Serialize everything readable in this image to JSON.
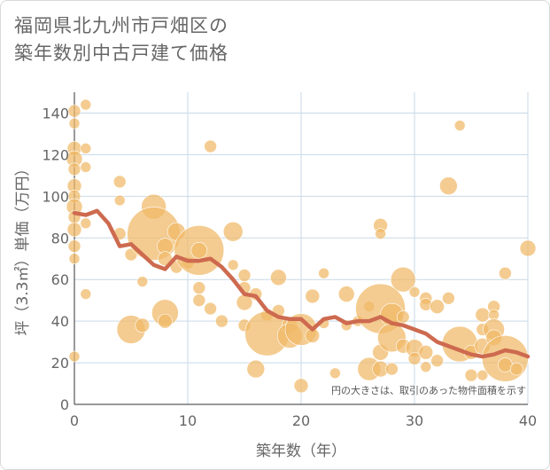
{
  "title_lines": [
    "福岡県北九州市戸畑区の",
    "築年数別中古戸建て価格"
  ],
  "chart_data": {
    "type": "scatter",
    "xlabel": "築年数（年）",
    "ylabel": "坪（3.3㎡）単価（万円）",
    "xlim": [
      0,
      40
    ],
    "ylim": [
      0,
      150
    ],
    "xticks": [
      0,
      10,
      20,
      30,
      40
    ],
    "yticks": [
      0,
      20,
      40,
      60,
      80,
      100,
      120,
      140
    ],
    "grid": true,
    "note": "円の大きさは、取引のあった物件面積を示す",
    "bubble_color": "#f0b866",
    "line_color": "#cd6a4f",
    "bubbles": [
      {
        "x": 0,
        "y": 141,
        "r": 7
      },
      {
        "x": 0,
        "y": 135,
        "r": 6
      },
      {
        "x": 0,
        "y": 123,
        "r": 8
      },
      {
        "x": 0,
        "y": 118,
        "r": 9
      },
      {
        "x": 0,
        "y": 113,
        "r": 7
      },
      {
        "x": 0,
        "y": 105,
        "r": 8
      },
      {
        "x": 0,
        "y": 100,
        "r": 7
      },
      {
        "x": 0,
        "y": 95,
        "r": 9
      },
      {
        "x": 0,
        "y": 90,
        "r": 7
      },
      {
        "x": 0,
        "y": 84,
        "r": 8
      },
      {
        "x": 0,
        "y": 76,
        "r": 7
      },
      {
        "x": 0,
        "y": 70,
        "r": 6
      },
      {
        "x": 0,
        "y": 23,
        "r": 6
      },
      {
        "x": 1,
        "y": 144,
        "r": 6
      },
      {
        "x": 1,
        "y": 123,
        "r": 6
      },
      {
        "x": 1,
        "y": 114,
        "r": 6
      },
      {
        "x": 1,
        "y": 87,
        "r": 6
      },
      {
        "x": 1,
        "y": 53,
        "r": 6
      },
      {
        "x": 4,
        "y": 107,
        "r": 7
      },
      {
        "x": 4,
        "y": 98,
        "r": 6
      },
      {
        "x": 4,
        "y": 82,
        "r": 7
      },
      {
        "x": 5,
        "y": 72,
        "r": 7
      },
      {
        "x": 5,
        "y": 36,
        "r": 16
      },
      {
        "x": 6,
        "y": 59,
        "r": 6
      },
      {
        "x": 6,
        "y": 38,
        "r": 8
      },
      {
        "x": 7,
        "y": 95,
        "r": 14
      },
      {
        "x": 7,
        "y": 82,
        "r": 30
      },
      {
        "x": 8,
        "y": 76,
        "r": 9
      },
      {
        "x": 8,
        "y": 70,
        "r": 8
      },
      {
        "x": 8,
        "y": 44,
        "r": 15
      },
      {
        "x": 8,
        "y": 40,
        "r": 8
      },
      {
        "x": 9,
        "y": 83,
        "r": 10
      },
      {
        "x": 9,
        "y": 66,
        "r": 7
      },
      {
        "x": 10,
        "y": 68,
        "r": 7
      },
      {
        "x": 11,
        "y": 74,
        "r": 28
      },
      {
        "x": 11,
        "y": 74,
        "r": 9
      },
      {
        "x": 11,
        "y": 56,
        "r": 7
      },
      {
        "x": 11,
        "y": 50,
        "r": 7
      },
      {
        "x": 12,
        "y": 124,
        "r": 7
      },
      {
        "x": 12,
        "y": 46,
        "r": 7
      },
      {
        "x": 13,
        "y": 40,
        "r": 7
      },
      {
        "x": 14,
        "y": 83,
        "r": 11
      },
      {
        "x": 14,
        "y": 67,
        "r": 6
      },
      {
        "x": 15,
        "y": 62,
        "r": 7
      },
      {
        "x": 15,
        "y": 56,
        "r": 7
      },
      {
        "x": 15,
        "y": 49,
        "r": 9
      },
      {
        "x": 15,
        "y": 38,
        "r": 7
      },
      {
        "x": 16,
        "y": 53,
        "r": 7
      },
      {
        "x": 16,
        "y": 17,
        "r": 10
      },
      {
        "x": 17,
        "y": 43,
        "r": 7
      },
      {
        "x": 17,
        "y": 34,
        "r": 25
      },
      {
        "x": 18,
        "y": 61,
        "r": 9
      },
      {
        "x": 18,
        "y": 45,
        "r": 7
      },
      {
        "x": 19,
        "y": 38,
        "r": 9
      },
      {
        "x": 19,
        "y": 33,
        "r": 14
      },
      {
        "x": 20,
        "y": 36,
        "r": 18
      },
      {
        "x": 20,
        "y": 9,
        "r": 8
      },
      {
        "x": 21,
        "y": 52,
        "r": 8
      },
      {
        "x": 21,
        "y": 33,
        "r": 8
      },
      {
        "x": 22,
        "y": 63,
        "r": 6
      },
      {
        "x": 22,
        "y": 39,
        "r": 6
      },
      {
        "x": 23,
        "y": 15,
        "r": 6
      },
      {
        "x": 24,
        "y": 53,
        "r": 9
      },
      {
        "x": 24,
        "y": 38,
        "r": 6
      },
      {
        "x": 25,
        "y": 40,
        "r": 6
      },
      {
        "x": 26,
        "y": 47,
        "r": 6
      },
      {
        "x": 26,
        "y": 17,
        "r": 13
      },
      {
        "x": 27,
        "y": 86,
        "r": 8
      },
      {
        "x": 27,
        "y": 82,
        "r": 6
      },
      {
        "x": 27,
        "y": 46,
        "r": 28
      },
      {
        "x": 27,
        "y": 25,
        "r": 9
      },
      {
        "x": 27,
        "y": 17,
        "r": 9
      },
      {
        "x": 28,
        "y": 43,
        "r": 13
      },
      {
        "x": 28,
        "y": 32,
        "r": 16
      },
      {
        "x": 28,
        "y": 17,
        "r": 7
      },
      {
        "x": 29,
        "y": 60,
        "r": 14
      },
      {
        "x": 29,
        "y": 42,
        "r": 7
      },
      {
        "x": 29,
        "y": 28,
        "r": 8
      },
      {
        "x": 30,
        "y": 54,
        "r": 6
      },
      {
        "x": 30,
        "y": 27,
        "r": 10
      },
      {
        "x": 30,
        "y": 22,
        "r": 7
      },
      {
        "x": 31,
        "y": 51,
        "r": 7
      },
      {
        "x": 31,
        "y": 48,
        "r": 7
      },
      {
        "x": 31,
        "y": 25,
        "r": 8
      },
      {
        "x": 31,
        "y": 18,
        "r": 6
      },
      {
        "x": 32,
        "y": 47,
        "r": 8
      },
      {
        "x": 32,
        "y": 21,
        "r": 7
      },
      {
        "x": 33,
        "y": 105,
        "r": 10
      },
      {
        "x": 33,
        "y": 51,
        "r": 7
      },
      {
        "x": 34,
        "y": 134,
        "r": 6
      },
      {
        "x": 34,
        "y": 29,
        "r": 20
      },
      {
        "x": 35,
        "y": 14,
        "r": 7
      },
      {
        "x": 35,
        "y": 25,
        "r": 8
      },
      {
        "x": 36,
        "y": 43,
        "r": 8
      },
      {
        "x": 36,
        "y": 36,
        "r": 7
      },
      {
        "x": 36,
        "y": 28,
        "r": 9
      },
      {
        "x": 36,
        "y": 14,
        "r": 6
      },
      {
        "x": 37,
        "y": 47,
        "r": 7
      },
      {
        "x": 37,
        "y": 43,
        "r": 6
      },
      {
        "x": 37,
        "y": 36,
        "r": 12
      },
      {
        "x": 37,
        "y": 32,
        "r": 9
      },
      {
        "x": 38,
        "y": 63,
        "r": 7
      },
      {
        "x": 38,
        "y": 22,
        "r": 26
      },
      {
        "x": 38,
        "y": 19,
        "r": 8
      },
      {
        "x": 39,
        "y": 17,
        "r": 7
      },
      {
        "x": 40,
        "y": 75,
        "r": 9
      }
    ],
    "line": {
      "x": [
        0,
        1,
        2,
        3,
        4,
        5,
        6,
        7,
        8,
        9,
        10,
        11,
        12,
        13,
        14,
        15,
        16,
        17,
        18,
        19,
        20,
        21,
        22,
        23,
        24,
        25,
        26,
        27,
        28,
        29,
        30,
        31,
        32,
        33,
        34,
        35,
        36,
        37,
        38,
        39,
        40
      ],
      "y": [
        92,
        91,
        93,
        87,
        76,
        77,
        72,
        67,
        65,
        71,
        69,
        69,
        70,
        66,
        60,
        53,
        52,
        45,
        42,
        41,
        41,
        36,
        41,
        42,
        39,
        40,
        40,
        42,
        39,
        38,
        36,
        34,
        30,
        28,
        26,
        24,
        23,
        24,
        26,
        25,
        23
      ]
    }
  }
}
